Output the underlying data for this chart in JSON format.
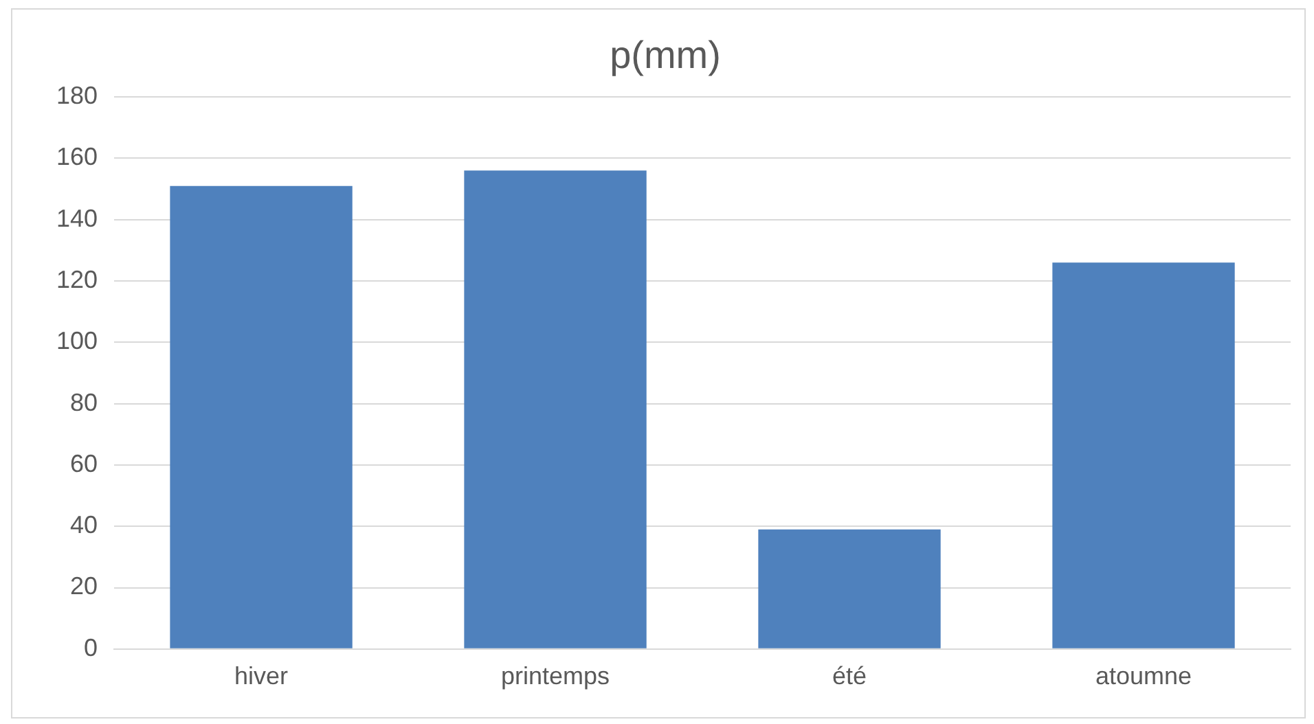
{
  "chart_data": {
    "type": "bar",
    "title": "p(mm)",
    "categories": [
      "hiver",
      "printemps",
      "été",
      "atoumne"
    ],
    "values": [
      151,
      156,
      39,
      126
    ],
    "color": "#4f81bd",
    "ylim": [
      0,
      180
    ],
    "yticks": [
      0,
      20,
      40,
      60,
      80,
      100,
      120,
      140,
      160,
      180
    ],
    "grid": "y",
    "legend": false
  }
}
